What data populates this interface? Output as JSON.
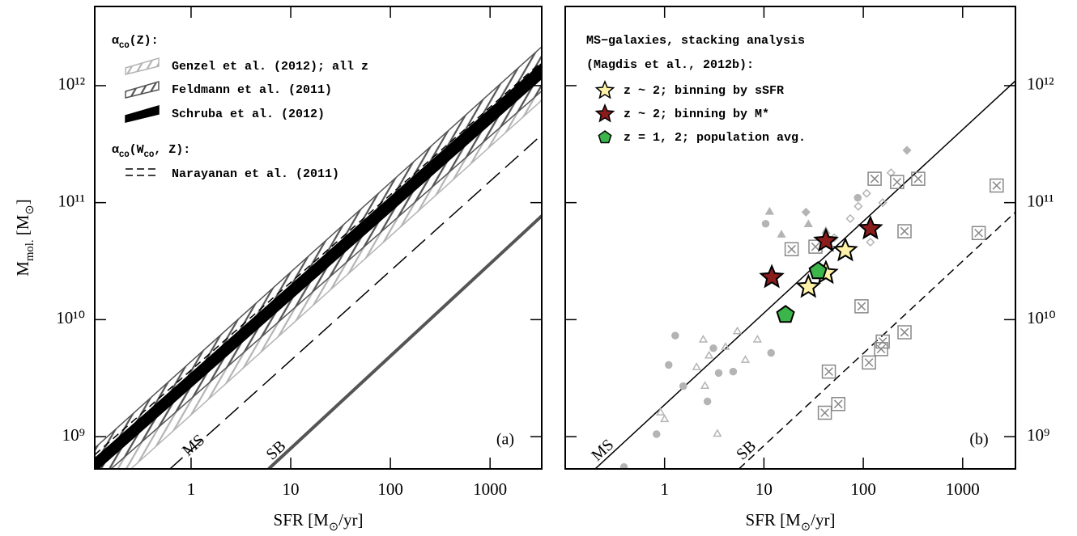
{
  "chart_data": [
    {
      "type": "line",
      "panel_label": "(a)",
      "xlabel": [
        {
          "text": "SFR [M"
        },
        {
          "text": "⊙",
          "sub": true
        },
        {
          "text": "/yr]"
        }
      ],
      "ylabel": [
        {
          "text": "M"
        },
        {
          "text": "mol.",
          "sub": true
        },
        {
          "text": " [M"
        },
        {
          "text": "⊙",
          "sub": true
        },
        {
          "text": "]"
        }
      ],
      "xscale": "log",
      "yscale": "log",
      "xlim": [
        0.108,
        3300
      ],
      "ylim": [
        530000000.0,
        4750000000000.0
      ],
      "xticks": [
        1,
        10,
        100,
        1000
      ],
      "yticks": [
        {
          "value": 1000000000.0,
          "label": "10⁹"
        },
        {
          "value": 10000000000.0,
          "label": "10¹⁰"
        },
        {
          "value": 100000000000.0,
          "label": "10¹¹"
        },
        {
          "value": 1000000000000.0,
          "label": "10¹²"
        }
      ],
      "ytick_side": "left",
      "legend_heading": [
        {
          "text": "α"
        },
        {
          "text": "CO",
          "sub": true
        },
        {
          "text": "(Z):"
        }
      ],
      "legend_heading_2": [
        {
          "text": "α"
        },
        {
          "text": "CO",
          "sub": true
        },
        {
          "text": "(W"
        },
        {
          "text": "CO",
          "sub": true
        },
        {
          "text": ", Z):"
        }
      ],
      "ms_label": "MS",
      "bands": [
        {
          "name": "Genzel et al. (2012); all z",
          "style": "hatch",
          "color": "#b4b4b4",
          "x": [
            0.108,
            3300
          ],
          "lower": [
            280000000.0,
            750000000000.0
          ],
          "upper": [
            520000000.0,
            1350000000000.0
          ]
        },
        {
          "name": "Feldmann et al. (2011)",
          "style": "hatch",
          "color": "#555555",
          "x": [
            0.108,
            3300
          ],
          "lower": [
            400000000.0,
            900000000000.0
          ],
          "upper": [
            800000000.0,
            2150000000000.0
          ]
        },
        {
          "name": "Schruba et al. (2012)",
          "style": "solid",
          "color": "#000000",
          "x": [
            0.108,
            3300
          ],
          "lower": [
            500000000.0,
            1150000000000.0
          ],
          "upper": [
            650000000.0,
            1550000000000.0
          ]
        },
        {
          "name": "Narayanan et al. (2011)",
          "style": "dashed",
          "color": "#000000",
          "x": [
            0.108,
            3300
          ],
          "lower": [
            140000000.0,
            380000000000.0
          ],
          "upper": [
            700000000.0,
            1600000000000.0
          ]
        }
      ],
      "lines": [
        {
          "name": "SB",
          "color": "#555555",
          "width": 4,
          "x": [
            6,
            3300
          ],
          "values": [
            530000000.0,
            77000000000.0
          ]
        }
      ]
    },
    {
      "type": "scatter",
      "panel_label": "(b)",
      "xlabel": [
        {
          "text": "SFR [M"
        },
        {
          "text": "⊙",
          "sub": true
        },
        {
          "text": "/yr]"
        }
      ],
      "xscale": "log",
      "yscale": "log",
      "xlim": [
        0.1,
        3400
      ],
      "ylim": [
        530000000.0,
        4750000000000.0
      ],
      "xticks": [
        1,
        10,
        100,
        1000
      ],
      "yticks": [
        {
          "value": 1000000000.0,
          "label": "10⁹"
        },
        {
          "value": 10000000000.0,
          "label": "10¹⁰"
        },
        {
          "value": 100000000000.0,
          "label": "10¹¹"
        },
        {
          "value": 1000000000000.0,
          "label": "10¹²"
        }
      ],
      "ytick_side": "right",
      "legend_heading": "MS−galaxies, stacking analysis",
      "legend_heading_2": "(Magdis et al., 2012b):",
      "lines": [
        {
          "name": "MS",
          "color": "#000000",
          "width": 1.5,
          "x": [
            0.2,
            3400
          ],
          "values": [
            530000000.0,
            1100000000000.0
          ]
        },
        {
          "name": "SB",
          "color": "#000000",
          "width": 1.5,
          "dashed": true,
          "x": [
            5.6,
            3400
          ],
          "values": [
            530000000.0,
            83000000000.0
          ]
        }
      ],
      "series": [
        {
          "marker": "circle",
          "color": "#b4b4b4",
          "filled": true,
          "x": [
            0.39,
            0.83,
            1.1,
            1.28,
            1.54,
            2.7,
            3.5,
            4.9,
            11.8,
            3.1,
            10.4,
            88
          ],
          "values": [
            550000000.0,
            1050000000.0,
            4100000000.0,
            7300000000.0,
            2700000000.0,
            2000000000.0,
            3500000000.0,
            3600000000.0,
            5200000000.0,
            5700000000.0,
            66000000000.0,
            110000000000.0
          ]
        },
        {
          "marker": "triangle",
          "color": "#b4b4b4",
          "filled": false,
          "x": [
            0.91,
            1.0,
            2.1,
            2.45,
            2.8,
            4.1,
            5.4,
            8.6,
            3.4,
            2.55,
            6.5
          ],
          "values": [
            1600000000.0,
            1400000000.0,
            3900000000.0,
            6700000000.0,
            4900000000.0,
            5800000000.0,
            7900000000.0,
            6700000000.0,
            1050000000.0,
            2700000000.0,
            4500000000.0
          ]
        },
        {
          "marker": "triangle",
          "color": "#b4b4b4",
          "filled": true,
          "x": [
            15,
            42,
            11.4,
            28
          ],
          "values": [
            53000000000.0,
            57000000000.0,
            83000000000.0,
            65000000000.0
          ]
        },
        {
          "marker": "diamond",
          "color": "#b4b4b4",
          "filled": false,
          "x": [
            108,
            89,
            190,
            157,
            74,
            118,
            51
          ],
          "values": [
            120000000000.0,
            93000000000.0,
            180000000000.0,
            100000000000.0,
            73000000000.0,
            46000000000.0,
            50000000000.0
          ]
        },
        {
          "marker": "diamond",
          "color": "#b4b4b4",
          "filled": true,
          "x": [
            275,
            26.5
          ],
          "values": [
            280000000000.0,
            83000000000.0
          ]
        },
        {
          "marker": "box-x",
          "color": "#888888",
          "filled": false,
          "x": [
            130,
            219,
            357,
            2200,
            260,
            1450,
            19,
            33,
            96,
            157,
            151,
            260,
            114,
            45,
            56,
            41
          ],
          "values": [
            160000000000.0,
            150000000000.0,
            160000000000.0,
            140000000000.0,
            57000000000.0,
            55000000000.0,
            40000000000.0,
            42000000000.0,
            13000000000.0,
            6500000000.0,
            5600000000.0,
            7800000000.0,
            4300000000.0,
            3600000000.0,
            1900000000.0,
            1600000000.0
          ]
        },
        {
          "name": "z ~ 2; binning by sSFR",
          "marker": "star",
          "color": "#fff2a8",
          "filled": true,
          "x": [
            28,
            42,
            66
          ],
          "values": [
            19000000000.0,
            25000000000.0,
            39000000000.0
          ]
        },
        {
          "name": "z ~ 2; binning by M*",
          "marker": "star",
          "color": "#8b1c1c",
          "filled": true,
          "x": [
            12,
            42,
            118
          ],
          "values": [
            23000000000.0,
            47000000000.0,
            60000000000.0
          ]
        },
        {
          "name": "z = 1, 2; population avg.",
          "marker": "pentagon",
          "color": "#3cb54a",
          "filled": true,
          "x": [
            16.5,
            35
          ],
          "values": [
            11000000000.0,
            26000000000.0
          ]
        }
      ]
    }
  ]
}
